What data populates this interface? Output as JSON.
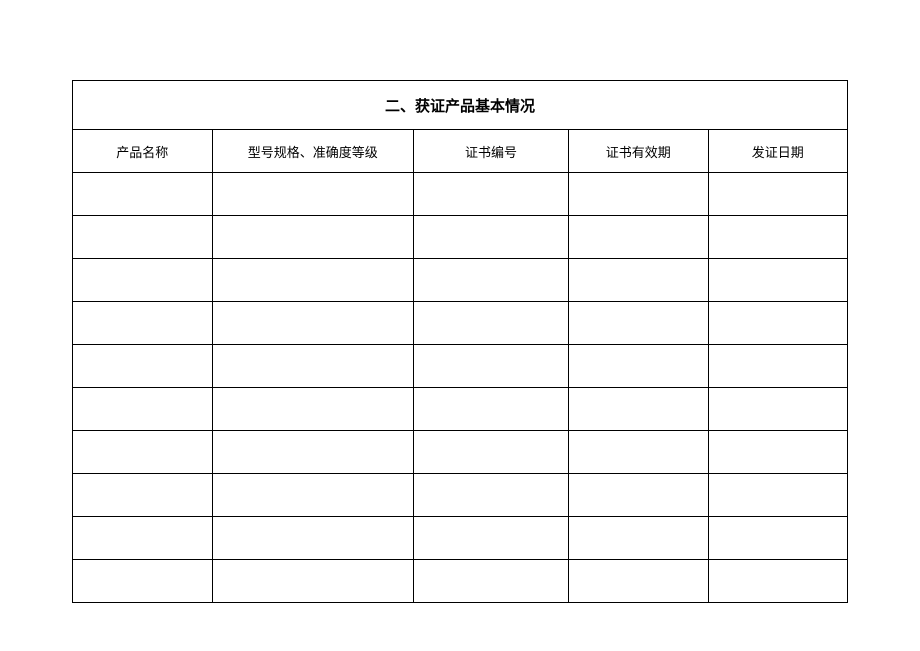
{
  "table": {
    "title": "二、获证产品基本情况",
    "columns": [
      {
        "label": "产品名称",
        "width_percent": 18
      },
      {
        "label": "型号规格、准确度等级",
        "width_percent": 26
      },
      {
        "label": "证书编号",
        "width_percent": 20
      },
      {
        "label": "证书有效期",
        "width_percent": 18
      },
      {
        "label": "发证日期",
        "width_percent": 18
      }
    ],
    "rows": [
      [
        "",
        "",
        "",
        "",
        ""
      ],
      [
        "",
        "",
        "",
        "",
        ""
      ],
      [
        "",
        "",
        "",
        "",
        ""
      ],
      [
        "",
        "",
        "",
        "",
        ""
      ],
      [
        "",
        "",
        "",
        "",
        ""
      ],
      [
        "",
        "",
        "",
        "",
        ""
      ],
      [
        "",
        "",
        "",
        "",
        ""
      ],
      [
        "",
        "",
        "",
        "",
        ""
      ],
      [
        "",
        "",
        "",
        "",
        ""
      ],
      [
        "",
        "",
        "",
        "",
        ""
      ]
    ],
    "border_color": "#000000",
    "background_color": "#ffffff",
    "title_fontsize": 15,
    "header_fontsize": 13,
    "cell_fontsize": 13,
    "title_row_height": 46,
    "header_row_height": 40,
    "data_row_height": 40
  }
}
